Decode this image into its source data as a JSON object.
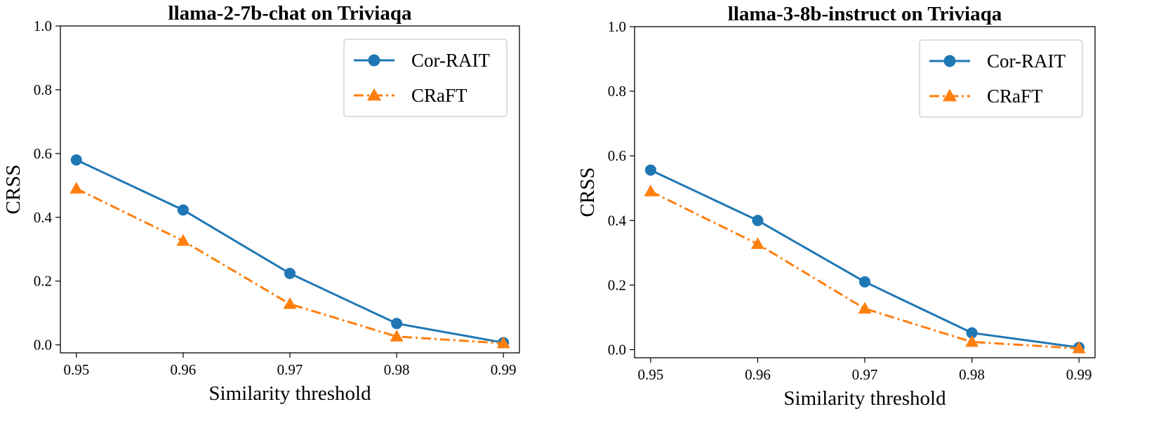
{
  "chart_data": [
    {
      "type": "line",
      "title": "llama-2-7b-chat on Triviaqa",
      "xlabel": "Similarity threshold",
      "ylabel": "CRSS",
      "x": [
        0.95,
        0.96,
        0.97,
        0.98,
        0.99
      ],
      "x_tick_labels": [
        "0.95",
        "0.96",
        "0.97",
        "0.98",
        "0.99"
      ],
      "y_ticks": [
        0.0,
        0.2,
        0.4,
        0.6,
        0.8,
        1.0
      ],
      "y_tick_labels": [
        "0.0",
        "0.2",
        "0.4",
        "0.6",
        "0.8",
        "1.0"
      ],
      "ylim": [
        -0.025,
        1.0
      ],
      "xlim": [
        0.9485,
        0.9915
      ],
      "grid": false,
      "legend_position": "top-right",
      "series": [
        {
          "name": "Cor-RAIT",
          "values": [
            0.58,
            0.423,
            0.224,
            0.067,
            0.007
          ],
          "color": "#1f77b4",
          "marker": "circle",
          "line_style": "solid"
        },
        {
          "name": "CRaFT",
          "values": [
            0.49,
            0.326,
            0.128,
            0.026,
            0.005
          ],
          "color": "#ff7f0e",
          "marker": "triangle",
          "line_style": "dashdot"
        }
      ]
    },
    {
      "type": "line",
      "title": "llama-3-8b-instruct on Triviaqa",
      "xlabel": "Similarity threshold",
      "ylabel": "CRSS",
      "x": [
        0.95,
        0.96,
        0.97,
        0.98,
        0.99
      ],
      "x_tick_labels": [
        "0.95",
        "0.96",
        "0.97",
        "0.98",
        "0.99"
      ],
      "y_ticks": [
        0.0,
        0.2,
        0.4,
        0.6,
        0.8,
        1.0
      ],
      "y_tick_labels": [
        "0.0",
        "0.2",
        "0.4",
        "0.6",
        "0.8",
        "1.0"
      ],
      "ylim": [
        -0.025,
        1.0
      ],
      "xlim": [
        0.9485,
        0.9915
      ],
      "grid": false,
      "legend_position": "top-right",
      "series": [
        {
          "name": "Cor-RAIT",
          "values": [
            0.556,
            0.4,
            0.21,
            0.052,
            0.007
          ],
          "color": "#1f77b4",
          "marker": "circle",
          "line_style": "solid"
        },
        {
          "name": "CRaFT",
          "values": [
            0.49,
            0.327,
            0.127,
            0.024,
            0.004
          ],
          "color": "#ff7f0e",
          "marker": "triangle",
          "line_style": "dashdot"
        }
      ]
    }
  ]
}
